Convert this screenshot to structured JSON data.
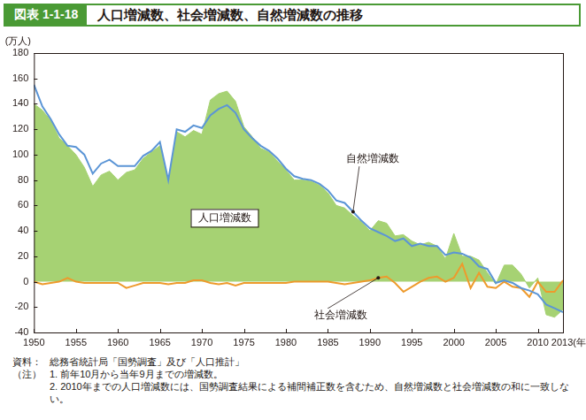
{
  "chart_data": {
    "type": "line",
    "figure_label": "図表 1-1-18",
    "title": "人口増減数、社会増減数、自然増減数の推移",
    "ylabel": "(万人)",
    "source_heading": "資料：",
    "source": "総務省統計局「国勢調査」及び「人口推計」",
    "notes_heading": "（注）",
    "notes": [
      "1. 前年10月から当年9月までの増減数。",
      "2. 2010年までの人口増減数には、国勢調査結果による補間補正数を含むため、自然増減数と社会増減数の和に一致しない。"
    ],
    "x": [
      1950,
      1951,
      1952,
      1953,
      1954,
      1955,
      1956,
      1957,
      1958,
      1959,
      1960,
      1961,
      1962,
      1963,
      1964,
      1965,
      1966,
      1967,
      1968,
      1969,
      1970,
      1971,
      1972,
      1973,
      1974,
      1975,
      1976,
      1977,
      1978,
      1979,
      1980,
      1981,
      1982,
      1983,
      1984,
      1985,
      1986,
      1987,
      1988,
      1989,
      1990,
      1991,
      1992,
      1993,
      1994,
      1995,
      1996,
      1997,
      1998,
      1999,
      2000,
      2001,
      2002,
      2003,
      2004,
      2005,
      2006,
      2007,
      2008,
      2009,
      2010,
      2011,
      2012,
      2013
    ],
    "xlim": [
      1950,
      2013
    ],
    "xticks": [
      1950,
      1955,
      1960,
      1965,
      1970,
      1975,
      1980,
      1985,
      1990,
      1995,
      2000,
      2005,
      2010,
      {
        "value": 2013,
        "label": "2013(年)"
      }
    ],
    "ylim": [
      -40,
      180
    ],
    "yticks": [
      -40,
      -20,
      0,
      20,
      40,
      60,
      80,
      100,
      120,
      140,
      160,
      180
    ],
    "grid": false,
    "series": [
      {
        "name": "人口増減数",
        "type": "area",
        "color": "#a6d273",
        "values": [
          140,
          135,
          127,
          113,
          107,
          100,
          90,
          75,
          84,
          87,
          80,
          86,
          88,
          97,
          102,
          107,
          78,
          118,
          114,
          119,
          116,
          143,
          148,
          150,
          142,
          122,
          114,
          105,
          102,
          95,
          88,
          80,
          80,
          79,
          76,
          70,
          60,
          58,
          52,
          47,
          40,
          48,
          46,
          36,
          37,
          32,
          29,
          31,
          28,
          18,
          38,
          20,
          20,
          17,
          7,
          -2,
          13,
          13,
          6,
          -5,
          3,
          -26,
          -28,
          -22
        ]
      },
      {
        "name": "自然増減数",
        "type": "line",
        "color": "#5b95d6",
        "values": [
          155,
          138,
          128,
          116,
          107,
          106,
          100,
          85,
          93,
          96,
          91,
          91,
          91,
          99,
          103,
          110,
          80,
          120,
          118,
          123,
          121,
          131,
          136,
          139,
          133,
          120,
          113,
          107,
          103,
          97,
          89,
          83,
          81,
          80,
          77,
          72,
          64,
          62,
          55,
          48,
          42,
          39,
          36,
          32,
          34,
          28,
          30,
          28,
          28,
          21,
          23,
          22,
          19,
          12,
          10,
          -1,
          1,
          -1,
          -5,
          -7,
          -10,
          -18,
          -21,
          -24
        ]
      },
      {
        "name": "社会増減数",
        "type": "line",
        "color": "#ee9a2c",
        "values": [
          0,
          -2,
          -1,
          0,
          3,
          0,
          -1,
          -1,
          -1,
          -1,
          -1,
          -5,
          -3,
          -1,
          -1,
          -1,
          -2,
          -1,
          -1,
          1,
          1,
          -1,
          -2,
          -1,
          -3,
          -1,
          -1,
          -1,
          -1,
          -1,
          -1,
          0,
          0,
          0,
          0,
          0,
          -1,
          -2,
          -1,
          0,
          1,
          3,
          4,
          -1,
          -8,
          -4,
          0,
          3,
          4,
          0,
          3,
          14,
          -5,
          7,
          -4,
          -5,
          0,
          -4,
          -5,
          -12,
          0,
          -8,
          -8,
          1
        ]
      }
    ]
  }
}
